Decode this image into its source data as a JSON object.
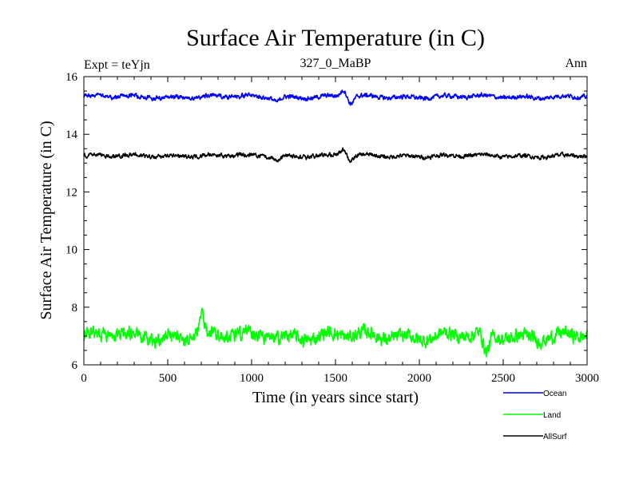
{
  "chart_data": {
    "type": "line",
    "title": "Surface Air Temperature (in C)",
    "subtitle_left": "Expt = teYjn",
    "subtitle_center": "327_0_MaBP",
    "subtitle_right": "Ann",
    "xlabel": "Time (in years since start)",
    "ylabel": "Surface Air Temperature (in C)",
    "xlim": [
      0,
      3000
    ],
    "ylim": [
      6,
      16
    ],
    "xticks": [
      0,
      500,
      1000,
      1500,
      2000,
      2500,
      3000
    ],
    "yticks": [
      6,
      8,
      10,
      12,
      14,
      16
    ],
    "legend_position": "bottom-right, outside plot",
    "series": [
      {
        "name": "Ocean",
        "color": "#0000ff",
        "mean": 15.3,
        "noise_amplitude": 0.1,
        "features": [
          {
            "x": 1150,
            "value": 15.15
          },
          {
            "x": 1550,
            "value": 15.55
          },
          {
            "x": 1590,
            "value": 15.05
          }
        ]
      },
      {
        "name": "Land",
        "color": "#00ff00",
        "mean": 7.0,
        "noise_amplitude": 0.3,
        "features": [
          {
            "x": 700,
            "value": 7.7
          },
          {
            "x": 2400,
            "value": 6.3
          }
        ]
      },
      {
        "name": "AllSurf",
        "color": "#000000",
        "mean": 13.25,
        "noise_amplitude": 0.09,
        "features": [
          {
            "x": 1150,
            "value": 13.1
          },
          {
            "x": 1550,
            "value": 13.5
          },
          {
            "x": 1590,
            "value": 13.05
          }
        ]
      }
    ]
  }
}
